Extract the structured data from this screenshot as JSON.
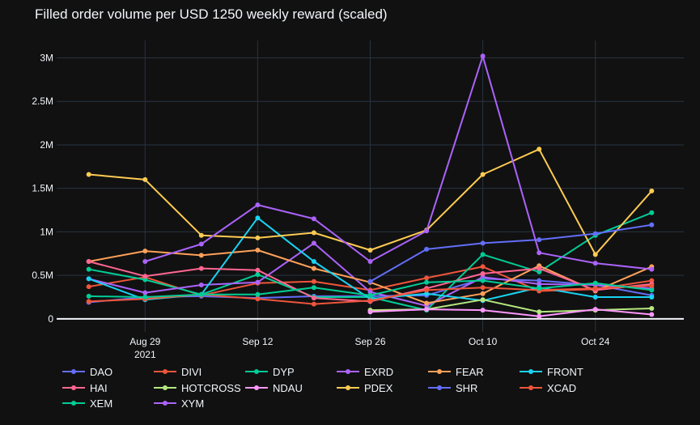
{
  "chart_data": {
    "type": "line",
    "title": "Filled order volume per USD 1250 weekly reward (scaled)",
    "xlabel": "",
    "ylabel": "",
    "x": [
      "2021-08-22",
      "2021-08-29",
      "2021-09-05",
      "2021-09-12",
      "2021-09-19",
      "2021-09-26",
      "2021-10-03",
      "2021-10-10",
      "2021-10-17",
      "2021-10-24",
      "2021-10-31"
    ],
    "xlim": [
      "2021-08-18",
      "2021-11-04"
    ],
    "x_ticks": [
      {
        "date": "2021-08-29",
        "label": "Aug 29",
        "sublabel": "2021"
      },
      {
        "date": "2021-09-12",
        "label": "Sep 12"
      },
      {
        "date": "2021-09-26",
        "label": "Sep 26"
      },
      {
        "date": "2021-10-10",
        "label": "Oct 10"
      },
      {
        "date": "2021-10-24",
        "label": "Oct 24"
      }
    ],
    "ylim": [
      -150000,
      3200000
    ],
    "y_ticks": [
      {
        "value": 0,
        "label": "0"
      },
      {
        "value": 500000,
        "label": "0.5M"
      },
      {
        "value": 1000000,
        "label": "1M"
      },
      {
        "value": 1500000,
        "label": "1.5M"
      },
      {
        "value": 2000000,
        "label": "2M"
      },
      {
        "value": 2500000,
        "label": "2.5M"
      },
      {
        "value": 3000000,
        "label": "3M"
      }
    ],
    "grid": true,
    "legend_position": "bottom",
    "series": [
      {
        "name": "DAO",
        "color": "#636efa",
        "values": [
          190000,
          250000,
          260000,
          240000,
          260000,
          260000,
          270000,
          460000,
          440000,
          390000,
          270000
        ]
      },
      {
        "name": "DIVI",
        "color": "#ef553b",
        "values": [
          370000,
          480000,
          270000,
          410000,
          430000,
          330000,
          470000,
          600000,
          320000,
          340000,
          440000
        ]
      },
      {
        "name": "DYP",
        "color": "#00cc96",
        "values": [
          570000,
          450000,
          280000,
          510000,
          250000,
          250000,
          100000,
          740000,
          540000,
          960000,
          1220000
        ]
      },
      {
        "name": "EXRD",
        "color": "#ab63fa",
        "values": [
          460000,
          300000,
          390000,
          420000,
          870000,
          310000,
          150000,
          480000,
          400000,
          390000,
          350000
        ]
      },
      {
        "name": "FEAR",
        "color": "#ffa15a",
        "values": [
          660000,
          780000,
          730000,
          790000,
          580000,
          420000,
          180000,
          290000,
          610000,
          320000,
          600000
        ]
      },
      {
        "name": "FRONT",
        "color": "#19d3f3",
        "values": [
          460000,
          220000,
          280000,
          1160000,
          660000,
          230000,
          290000,
          210000,
          360000,
          250000,
          250000
        ]
      },
      {
        "name": "HAI",
        "color": "#ff6692",
        "values": [
          660000,
          490000,
          580000,
          560000,
          240000,
          200000,
          350000,
          520000,
          580000,
          330000,
          400000
        ]
      },
      {
        "name": "HOTCROSS",
        "color": "#b6e880",
        "values": [
          null,
          null,
          null,
          null,
          null,
          100000,
          110000,
          220000,
          80000,
          100000,
          120000
        ]
      },
      {
        "name": "NDAU",
        "color": "#ff97ff",
        "values": [
          null,
          null,
          null,
          null,
          null,
          80000,
          110000,
          100000,
          30000,
          110000,
          50000
        ]
      },
      {
        "name": "PDEX",
        "color": "#fecb52",
        "values": [
          1660000,
          1600000,
          960000,
          930000,
          990000,
          790000,
          1020000,
          1660000,
          1950000,
          740000,
          1470000
        ]
      },
      {
        "name": "SHR",
        "color": "#636efa",
        "values": [
          null,
          null,
          null,
          null,
          null,
          430000,
          800000,
          870000,
          910000,
          980000,
          1080000
        ]
      },
      {
        "name": "XCAD",
        "color": "#ef553b",
        "values": [
          200000,
          230000,
          280000,
          230000,
          170000,
          210000,
          330000,
          360000,
          330000,
          350000,
          380000
        ]
      },
      {
        "name": "XEM",
        "color": "#00cc96",
        "values": [
          260000,
          250000,
          280000,
          280000,
          360000,
          270000,
          420000,
          440000,
          350000,
          410000,
          330000
        ]
      },
      {
        "name": "XYM",
        "color": "#ab63fa",
        "values": [
          null,
          660000,
          860000,
          1310000,
          1150000,
          660000,
          1010000,
          3020000,
          760000,
          640000,
          570000
        ]
      }
    ]
  }
}
